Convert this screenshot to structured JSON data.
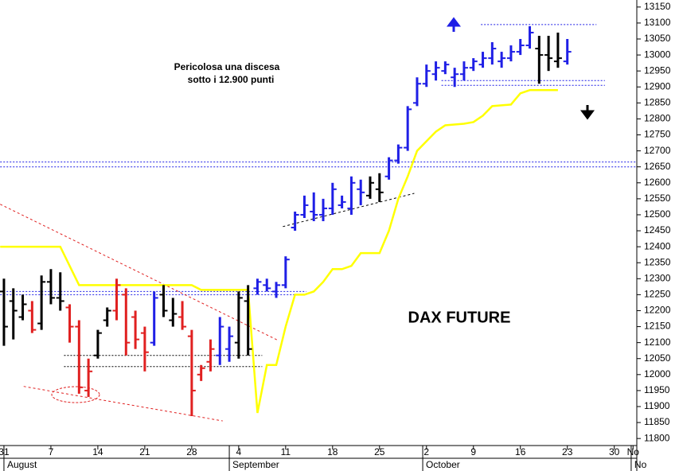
{
  "chart_data": {
    "type": "ohlc",
    "title": "DAX FUTURE",
    "annotation": [
      "Pericolosa una discesa",
      "sotto i 12.900 punti"
    ],
    "x": [
      0,
      1,
      2,
      3,
      4,
      5,
      6,
      7,
      8,
      9,
      10,
      11,
      12,
      13,
      14,
      15,
      16,
      17,
      18,
      19,
      20,
      21,
      22,
      23,
      24,
      25,
      26,
      27,
      28,
      29,
      30,
      31,
      32,
      33,
      34,
      35,
      36,
      37,
      38,
      39,
      40,
      41,
      42,
      43,
      44,
      45,
      46,
      47,
      48,
      49,
      50,
      51,
      52,
      53,
      54,
      55,
      56,
      57,
      58,
      59,
      60
    ],
    "open": [
      12260,
      12230,
      12180,
      12200,
      12160,
      12290,
      12240,
      12210,
      12150,
      11950,
      12060,
      12170,
      12200,
      12250,
      12180,
      12130,
      12100,
      12250,
      12170,
      12180,
      12120,
      12000,
      12040,
      12060,
      12080,
      12100,
      12230,
      12270,
      12280,
      12260,
      12280,
      12460,
      12500,
      12510,
      12500,
      12520,
      12530,
      12520,
      12580,
      12560,
      12580,
      12620,
      12670,
      12710,
      12850,
      12910,
      12940,
      12950,
      12930,
      12940,
      12960,
      12970,
      12990,
      12980,
      12990,
      13010,
      13030,
      13020,
      13000,
      12980,
      12980
    ],
    "high": [
      12300,
      12270,
      12250,
      12230,
      12310,
      12330,
      12320,
      12220,
      12170,
      12050,
      12140,
      12210,
      12300,
      12270,
      12200,
      12150,
      12260,
      12280,
      12240,
      12230,
      12140,
      12030,
      12110,
      12180,
      12150,
      12260,
      12280,
      12300,
      12300,
      12290,
      12370,
      12510,
      12560,
      12570,
      12550,
      12600,
      12560,
      12620,
      12610,
      12620,
      12630,
      12680,
      12720,
      12840,
      12930,
      12970,
      12980,
      12980,
      12960,
      12980,
      12990,
      13010,
      13040,
      13010,
      13030,
      13050,
      13090,
      13060,
      13060,
      13070,
      13050
    ],
    "low": [
      12090,
      12110,
      12170,
      12130,
      12140,
      12220,
      12200,
      12100,
      11940,
      11930,
      12050,
      12150,
      12170,
      12060,
      12080,
      12010,
      12090,
      12180,
      12150,
      12140,
      11870,
      11980,
      12010,
      12030,
      12040,
      12050,
      12060,
      12250,
      12260,
      12240,
      12270,
      12450,
      12490,
      12480,
      12480,
      12500,
      12520,
      12500,
      12530,
      12550,
      12540,
      12610,
      12660,
      12700,
      12840,
      12900,
      12920,
      12940,
      12900,
      12920,
      12950,
      12960,
      12970,
      12960,
      12980,
      13000,
      13020,
      12910,
      12950,
      12960,
      12970
    ],
    "close": [
      12150,
      12200,
      12220,
      12140,
      12290,
      12240,
      12230,
      12150,
      11960,
      12010,
      12130,
      12200,
      12280,
      12100,
      12110,
      12070,
      12240,
      12200,
      12190,
      12150,
      11950,
      12020,
      12080,
      12150,
      12120,
      12240,
      12080,
      12290,
      12270,
      12280,
      12360,
      12500,
      12530,
      12500,
      12520,
      12580,
      12540,
      12600,
      12570,
      12600,
      12570,
      12670,
      12710,
      12830,
      12910,
      12950,
      12960,
      12970,
      12940,
      12960,
      12980,
      12990,
      13020,
      12990,
      13010,
      13030,
      13070,
      13000,
      12990,
      12990,
      13010
    ],
    "colors": [
      "#000000",
      "#000000",
      "#000000",
      "#e02020",
      "#000000",
      "#000000",
      "#000000",
      "#e02020",
      "#e02020",
      "#e02020",
      "#000000",
      "#000000",
      "#e02020",
      "#e02020",
      "#e02020",
      "#e02020",
      "#1f1fe6",
      "#000000",
      "#000000",
      "#e02020",
      "#e02020",
      "#e02020",
      "#e02020",
      "#1f1fe6",
      "#1f1fe6",
      "#000000",
      "#000000",
      "#1f1fe6",
      "#1f1fe6",
      "#1f1fe6",
      "#1f1fe6",
      "#1f1fe6",
      "#1f1fe6",
      "#1f1fe6",
      "#1f1fe6",
      "#1f1fe6",
      "#1f1fe6",
      "#1f1fe6",
      "#1f1fe6",
      "#000000",
      "#000000",
      "#1f1fe6",
      "#1f1fe6",
      "#1f1fe6",
      "#1f1fe6",
      "#1f1fe6",
      "#1f1fe6",
      "#1f1fe6",
      "#1f1fe6",
      "#1f1fe6",
      "#1f1fe6",
      "#1f1fe6",
      "#1f1fe6",
      "#1f1fe6",
      "#1f1fe6",
      "#1f1fe6",
      "#1f1fe6",
      "#000000",
      "#000000",
      "#000000",
      "#1f1fe6"
    ],
    "average": {
      "color": "#ffff00",
      "x": [
        -0.4,
        6,
        8,
        20,
        21,
        26,
        27,
        28,
        29,
        30,
        31,
        32,
        33,
        34,
        35,
        36,
        37,
        38,
        40,
        41,
        42,
        43,
        44,
        45,
        46,
        47,
        49,
        50,
        51,
        52,
        54,
        55,
        56,
        59
      ],
      "values": [
        12400,
        12400,
        12280,
        12280,
        12265,
        12265,
        11880,
        12030,
        12030,
        12150,
        12250,
        12250,
        12260,
        12290,
        12330,
        12330,
        12340,
        12380,
        12380,
        12450,
        12550,
        12620,
        12700,
        12730,
        12760,
        12780,
        12785,
        12790,
        12810,
        12840,
        12845,
        12880,
        12890,
        12890
      ]
    },
    "levels": [
      {
        "value": 12665,
        "x": [
          -0.4,
          67.4
        ],
        "color": "#1f1fe6"
      },
      {
        "value": 12650,
        "x": [
          -0.4,
          67.4
        ],
        "color": "#1f1fe6"
      },
      {
        "value": 12260,
        "x": [
          -0.4,
          32.2
        ],
        "color": "#1f1fe6"
      },
      {
        "value": 12250,
        "x": [
          -0.4,
          32.2
        ],
        "color": "#1f1fe6"
      },
      {
        "value": 12920,
        "x": [
          46.6,
          64
        ],
        "color": "#1f1fe6"
      },
      {
        "value": 12905,
        "x": [
          46.6,
          64
        ],
        "color": "#1f1fe6"
      },
      {
        "value": 13095,
        "x": [
          50.8,
          63.1
        ],
        "color": "#1f1fe6"
      },
      {
        "value": 12060,
        "x": [
          6.4,
          27.5
        ],
        "color": "#000000"
      },
      {
        "value": 12025,
        "x": [
          6.4,
          27.5
        ],
        "color": "#000000"
      }
    ],
    "trendlines": [
      {
        "x": [
          -0.4,
          29.2
        ],
        "values": [
          12533,
          12107
        ],
        "color": "#e02020"
      },
      {
        "x": [
          2.1,
          23.3
        ],
        "values": [
          11963,
          11855
        ],
        "color": "#e02020"
      },
      {
        "x": [
          29.7,
          43.7
        ],
        "values": [
          12463,
          12567
        ],
        "color": "#000000"
      }
    ],
    "xlim": [
      -0.42,
      67.4
    ],
    "xticks": [
      {
        "value": 0,
        "label": "31"
      },
      {
        "value": 5,
        "label": "7"
      },
      {
        "value": 10,
        "label": "14"
      },
      {
        "value": 15,
        "label": "21"
      },
      {
        "value": 20,
        "label": "28"
      },
      {
        "value": 25,
        "label": "4"
      },
      {
        "value": 30,
        "label": "11"
      },
      {
        "value": 35,
        "label": "18"
      },
      {
        "value": 40,
        "label": "25"
      },
      {
        "value": 45,
        "label": "2"
      },
      {
        "value": 50,
        "label": "9"
      },
      {
        "value": 55,
        "label": "16"
      },
      {
        "value": 60,
        "label": "23"
      },
      {
        "value": 65,
        "label": "30"
      },
      {
        "value": 67,
        "label": "No"
      }
    ],
    "months": [
      {
        "value": 0,
        "label": "August"
      },
      {
        "value": 24,
        "label": "September"
      },
      {
        "value": 44.6,
        "label": "October"
      },
      {
        "value": 66.8,
        "label": "No"
      }
    ],
    "ylim": [
      11778,
      13172
    ],
    "yticks": [
      11800,
      11850,
      11900,
      11950,
      12000,
      12050,
      12100,
      12150,
      12200,
      12250,
      12300,
      12350,
      12400,
      12450,
      12500,
      12550,
      12600,
      12650,
      12700,
      12750,
      12800,
      12850,
      12900,
      12950,
      13000,
      13050,
      13100,
      13150
    ]
  }
}
